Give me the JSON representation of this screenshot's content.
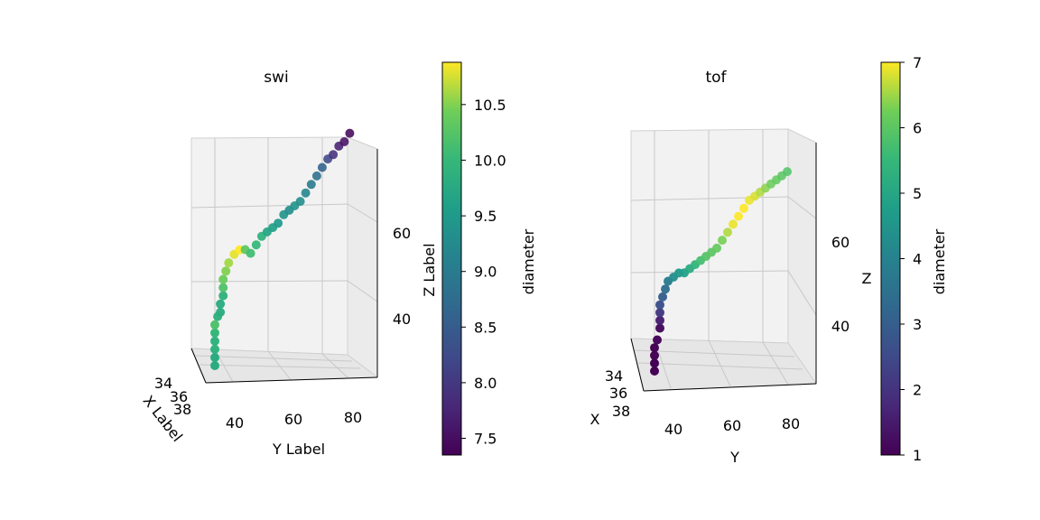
{
  "chart_data": [
    {
      "type": "scatter3d",
      "title": "swi",
      "xlabel": "X Label",
      "ylabel": "Y Label",
      "zlabel": "Z Label",
      "x_ticks": [
        "34",
        "36",
        "38"
      ],
      "y_ticks": [
        "40",
        "60",
        "80"
      ],
      "z_ticks": [
        "40",
        "60"
      ],
      "colorbar": {
        "label": "diameter",
        "min": 7.35,
        "max": 10.88,
        "ticks": [
          "7.5",
          "8.0",
          "8.5",
          "9.0",
          "9.5",
          "10.0",
          "10.5"
        ],
        "tick_values": [
          7.5,
          8.0,
          8.5,
          9.0,
          9.5,
          10.0,
          10.5
        ]
      },
      "points": [
        {
          "x": 35,
          "y": 33,
          "z": 31,
          "d": 9.8
        },
        {
          "x": 35,
          "y": 33,
          "z": 33,
          "d": 9.8
        },
        {
          "x": 35,
          "y": 33,
          "z": 35,
          "d": 9.9
        },
        {
          "x": 35,
          "y": 33,
          "z": 37,
          "d": 9.9
        },
        {
          "x": 35,
          "y": 33,
          "z": 39,
          "d": 10.0
        },
        {
          "x": 35,
          "y": 33,
          "z": 41,
          "d": 10.2
        },
        {
          "x": 35,
          "y": 34,
          "z": 43,
          "d": 9.9
        },
        {
          "x": 35,
          "y": 35,
          "z": 44,
          "d": 9.8
        },
        {
          "x": 35,
          "y": 35,
          "z": 46,
          "d": 9.8
        },
        {
          "x": 35,
          "y": 36,
          "z": 48,
          "d": 9.9
        },
        {
          "x": 35,
          "y": 36,
          "z": 50,
          "d": 10.2
        },
        {
          "x": 35,
          "y": 36,
          "z": 52,
          "d": 10.4
        },
        {
          "x": 35,
          "y": 37,
          "z": 54,
          "d": 10.5
        },
        {
          "x": 35,
          "y": 38,
          "z": 56,
          "d": 10.6
        },
        {
          "x": 35,
          "y": 40,
          "z": 58,
          "d": 10.8
        },
        {
          "x": 35,
          "y": 42,
          "z": 59,
          "d": 10.9
        },
        {
          "x": 35,
          "y": 44,
          "z": 59,
          "d": 10.3
        },
        {
          "x": 35,
          "y": 46,
          "z": 58,
          "d": 10.1
        },
        {
          "x": 35,
          "y": 48,
          "z": 60,
          "d": 10.0
        },
        {
          "x": 35,
          "y": 50,
          "z": 62,
          "d": 9.9
        },
        {
          "x": 35,
          "y": 52,
          "z": 63,
          "d": 9.7
        },
        {
          "x": 35,
          "y": 54,
          "z": 64,
          "d": 9.6
        },
        {
          "x": 35,
          "y": 56,
          "z": 65,
          "d": 9.5
        },
        {
          "x": 35,
          "y": 58,
          "z": 67,
          "d": 9.4
        },
        {
          "x": 35,
          "y": 60,
          "z": 68,
          "d": 9.3
        },
        {
          "x": 35,
          "y": 62,
          "z": 69,
          "d": 9.4
        },
        {
          "x": 35,
          "y": 64,
          "z": 70,
          "d": 9.3
        },
        {
          "x": 35,
          "y": 66,
          "z": 72,
          "d": 9.2
        },
        {
          "x": 35,
          "y": 68,
          "z": 74,
          "d": 9.0
        },
        {
          "x": 35,
          "y": 70,
          "z": 76,
          "d": 8.8
        },
        {
          "x": 35,
          "y": 72,
          "z": 78,
          "d": 8.6
        },
        {
          "x": 35,
          "y": 74,
          "z": 80,
          "d": 8.2
        },
        {
          "x": 35,
          "y": 76,
          "z": 81,
          "d": 7.9
        },
        {
          "x": 35,
          "y": 78,
          "z": 83,
          "d": 7.7
        },
        {
          "x": 35,
          "y": 80,
          "z": 84,
          "d": 7.5
        },
        {
          "x": 35,
          "y": 82,
          "z": 86,
          "d": 7.4
        }
      ]
    },
    {
      "type": "scatter3d",
      "title": "tof",
      "xlabel": "X",
      "ylabel": "Y",
      "zlabel": "Z",
      "x_ticks": [
        "34",
        "36",
        "38"
      ],
      "y_ticks": [
        "40",
        "60",
        "80"
      ],
      "z_ticks": [
        "40",
        "60"
      ],
      "colorbar": {
        "label": "diameter",
        "min": 1,
        "max": 7,
        "ticks": [
          "1",
          "2",
          "3",
          "4",
          "5",
          "6",
          "7"
        ],
        "tick_values": [
          1,
          2,
          3,
          4,
          5,
          6,
          7
        ]
      },
      "points": [
        {
          "x": 35,
          "y": 33,
          "z": 31,
          "d": 1.0
        },
        {
          "x": 35,
          "y": 33,
          "z": 33,
          "d": 1.0
        },
        {
          "x": 35,
          "y": 33,
          "z": 35,
          "d": 1.0
        },
        {
          "x": 35,
          "y": 33,
          "z": 37,
          "d": 1.0
        },
        {
          "x": 35,
          "y": 34,
          "z": 39,
          "d": 1.1
        },
        {
          "x": 35,
          "y": 35,
          "z": 42,
          "d": 1.2
        },
        {
          "x": 35,
          "y": 35,
          "z": 44,
          "d": 1.6
        },
        {
          "x": 35,
          "y": 35,
          "z": 46,
          "d": 2.1
        },
        {
          "x": 35,
          "y": 35,
          "z": 48,
          "d": 2.6
        },
        {
          "x": 35,
          "y": 36,
          "z": 50,
          "d": 3.0
        },
        {
          "x": 35,
          "y": 37,
          "z": 52,
          "d": 3.4
        },
        {
          "x": 35,
          "y": 38,
          "z": 54,
          "d": 3.8
        },
        {
          "x": 35,
          "y": 40,
          "z": 55,
          "d": 4.3
        },
        {
          "x": 35,
          "y": 42,
          "z": 56,
          "d": 4.6
        },
        {
          "x": 35,
          "y": 44,
          "z": 56,
          "d": 4.8
        },
        {
          "x": 35,
          "y": 46,
          "z": 57,
          "d": 5.1
        },
        {
          "x": 35,
          "y": 48,
          "z": 58,
          "d": 5.4
        },
        {
          "x": 35,
          "y": 50,
          "z": 59,
          "d": 5.7
        },
        {
          "x": 35,
          "y": 52,
          "z": 60,
          "d": 5.9
        },
        {
          "x": 35,
          "y": 54,
          "z": 61,
          "d": 6.0
        },
        {
          "x": 35,
          "y": 56,
          "z": 62,
          "d": 6.1
        },
        {
          "x": 35,
          "y": 58,
          "z": 64,
          "d": 6.3
        },
        {
          "x": 35,
          "y": 60,
          "z": 66,
          "d": 6.6
        },
        {
          "x": 35,
          "y": 62,
          "z": 68,
          "d": 6.9
        },
        {
          "x": 35,
          "y": 64,
          "z": 70,
          "d": 7.0
        },
        {
          "x": 35,
          "y": 66,
          "z": 72,
          "d": 7.0
        },
        {
          "x": 35,
          "y": 68,
          "z": 74,
          "d": 6.9
        },
        {
          "x": 35,
          "y": 70,
          "z": 75,
          "d": 6.8
        },
        {
          "x": 35,
          "y": 72,
          "z": 76,
          "d": 6.6
        },
        {
          "x": 35,
          "y": 74,
          "z": 77,
          "d": 6.4
        },
        {
          "x": 35,
          "y": 76,
          "z": 78,
          "d": 6.2
        },
        {
          "x": 35,
          "y": 78,
          "z": 79,
          "d": 6.1
        },
        {
          "x": 35,
          "y": 80,
          "z": 80,
          "d": 6.0
        },
        {
          "x": 35,
          "y": 82,
          "z": 81,
          "d": 5.9
        }
      ]
    }
  ]
}
